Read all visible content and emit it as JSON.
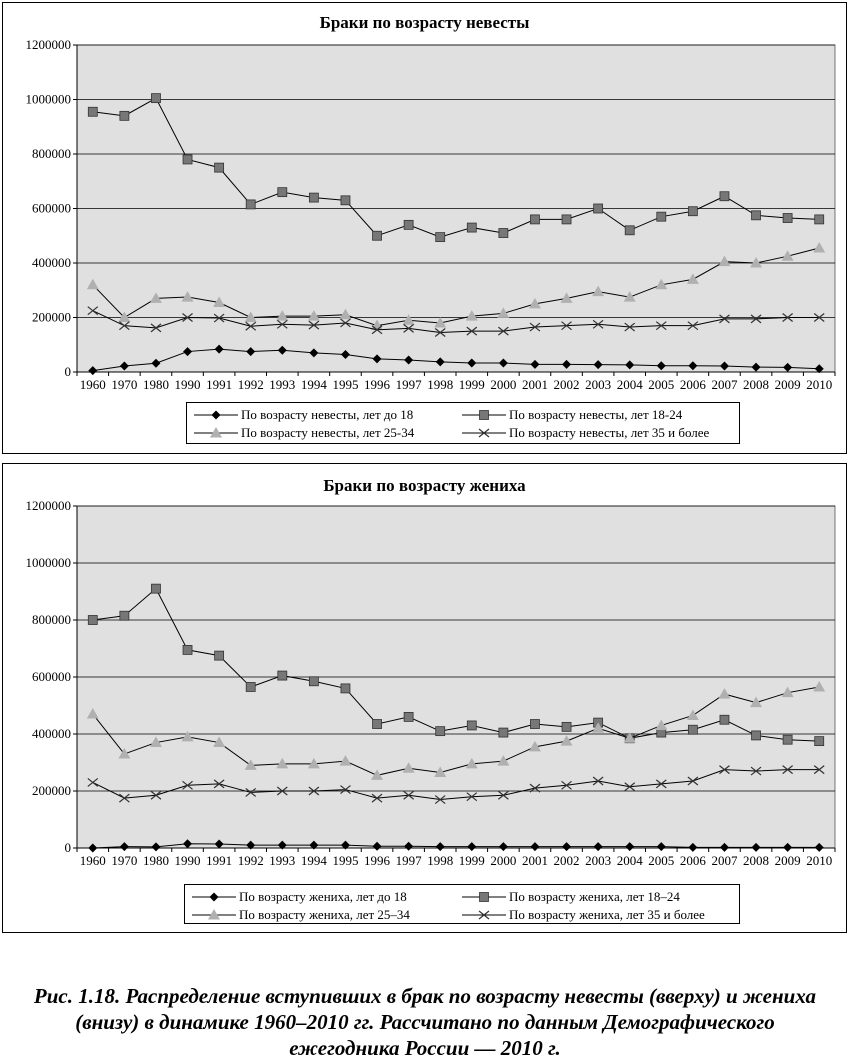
{
  "caption": "Рис. 1.18. Распределение вступивших в брак по возрасту невесты (вверху) и жениха (внизу) в динамике 1960–2010 гг. Рассчитано по данным Демографического ежегодника России — 2010 г.",
  "colors": {
    "plot_bg": "#e0e0e0",
    "line": "#000000",
    "marker_dark": "#000000",
    "marker_square": "#777777",
    "marker_triangle": "#b0b0b0"
  },
  "chart_data": [
    {
      "type": "line",
      "title": "Браки по возрасту невесты",
      "categories": [
        "1960",
        "1970",
        "1980",
        "1990",
        "1991",
        "1992",
        "1993",
        "1994",
        "1995",
        "1996",
        "1997",
        "1998",
        "1999",
        "2000",
        "2001",
        "2002",
        "2003",
        "2004",
        "2005",
        "2006",
        "2007",
        "2008",
        "2009",
        "2010"
      ],
      "y_ticks": [
        "0",
        "200000",
        "400000",
        "600000",
        "800000",
        "1000000",
        "1200000"
      ],
      "ylim": [
        0,
        1200000
      ],
      "grid": "horizontal",
      "legend_placement": "bottom",
      "series": [
        {
          "name": "По возрасту невесты, лет до 18",
          "marker": "diamond",
          "values": [
            5000,
            22000,
            32000,
            75000,
            84000,
            75000,
            80000,
            70000,
            64000,
            48000,
            44000,
            37000,
            33000,
            33000,
            28000,
            28000,
            27000,
            26000,
            23000,
            23000,
            22000,
            18000,
            17000,
            12000
          ]
        },
        {
          "name": "По возрасту невесты, лет 18-24",
          "marker": "square",
          "values": [
            955000,
            940000,
            1005000,
            780000,
            750000,
            615000,
            660000,
            640000,
            630000,
            500000,
            540000,
            495000,
            530000,
            510000,
            560000,
            560000,
            600000,
            520000,
            570000,
            590000,
            645000,
            575000,
            565000,
            560000
          ]
        },
        {
          "name": "По возрасту невесты, лет 25-34",
          "marker": "triangle",
          "values": [
            320000,
            200000,
            270000,
            275000,
            255000,
            200000,
            205000,
            205000,
            210000,
            170000,
            190000,
            180000,
            205000,
            215000,
            250000,
            270000,
            295000,
            275000,
            320000,
            340000,
            405000,
            400000,
            425000,
            455000
          ]
        },
        {
          "name": "По возрасту невесты, лет 35 и более",
          "marker": "x",
          "values": [
            225000,
            170000,
            162000,
            200000,
            198000,
            168000,
            175000,
            172000,
            180000,
            155000,
            160000,
            145000,
            150000,
            150000,
            165000,
            170000,
            175000,
            165000,
            170000,
            170000,
            195000,
            195000,
            200000,
            200000
          ]
        }
      ]
    },
    {
      "type": "line",
      "title": "Браки по возрасту жениха",
      "categories": [
        "1960",
        "1970",
        "1980",
        "1990",
        "1991",
        "1992",
        "1993",
        "1994",
        "1995",
        "1996",
        "1997",
        "1998",
        "1999",
        "2000",
        "2001",
        "2002",
        "2003",
        "2004",
        "2005",
        "2006",
        "2007",
        "2008",
        "2009",
        "2010"
      ],
      "y_ticks": [
        "0",
        "200000",
        "400000",
        "600000",
        "800000",
        "1000000",
        "1200000"
      ],
      "ylim": [
        0,
        1200000
      ],
      "grid": "horizontal",
      "legend_placement": "bottom",
      "series": [
        {
          "name": "По возрасту жениха, лет до 18",
          "marker": "diamond",
          "values": [
            0,
            5000,
            4000,
            15000,
            14000,
            10000,
            10000,
            10000,
            10000,
            6000,
            6000,
            5000,
            5000,
            5000,
            5000,
            5000,
            5000,
            5000,
            5000,
            2000,
            2000,
            2000,
            2000,
            2000
          ]
        },
        {
          "name": "По возрасту жениха, лет 18–24",
          "marker": "square",
          "values": [
            800000,
            815000,
            910000,
            695000,
            675000,
            565000,
            605000,
            585000,
            560000,
            435000,
            460000,
            410000,
            430000,
            405000,
            435000,
            425000,
            440000,
            385000,
            405000,
            415000,
            450000,
            395000,
            380000,
            375000
          ]
        },
        {
          "name": "По возрасту жениха, лет 25–34",
          "marker": "triangle",
          "values": [
            470000,
            330000,
            370000,
            390000,
            370000,
            290000,
            295000,
            295000,
            305000,
            255000,
            280000,
            265000,
            295000,
            305000,
            355000,
            375000,
            420000,
            385000,
            430000,
            465000,
            540000,
            510000,
            545000,
            565000
          ]
        },
        {
          "name": "По возрасту жениха, лет 35 и более",
          "marker": "x",
          "values": [
            230000,
            175000,
            185000,
            220000,
            225000,
            195000,
            200000,
            200000,
            205000,
            175000,
            185000,
            170000,
            180000,
            185000,
            210000,
            220000,
            235000,
            215000,
            225000,
            235000,
            275000,
            270000,
            275000,
            275000
          ]
        }
      ]
    }
  ]
}
